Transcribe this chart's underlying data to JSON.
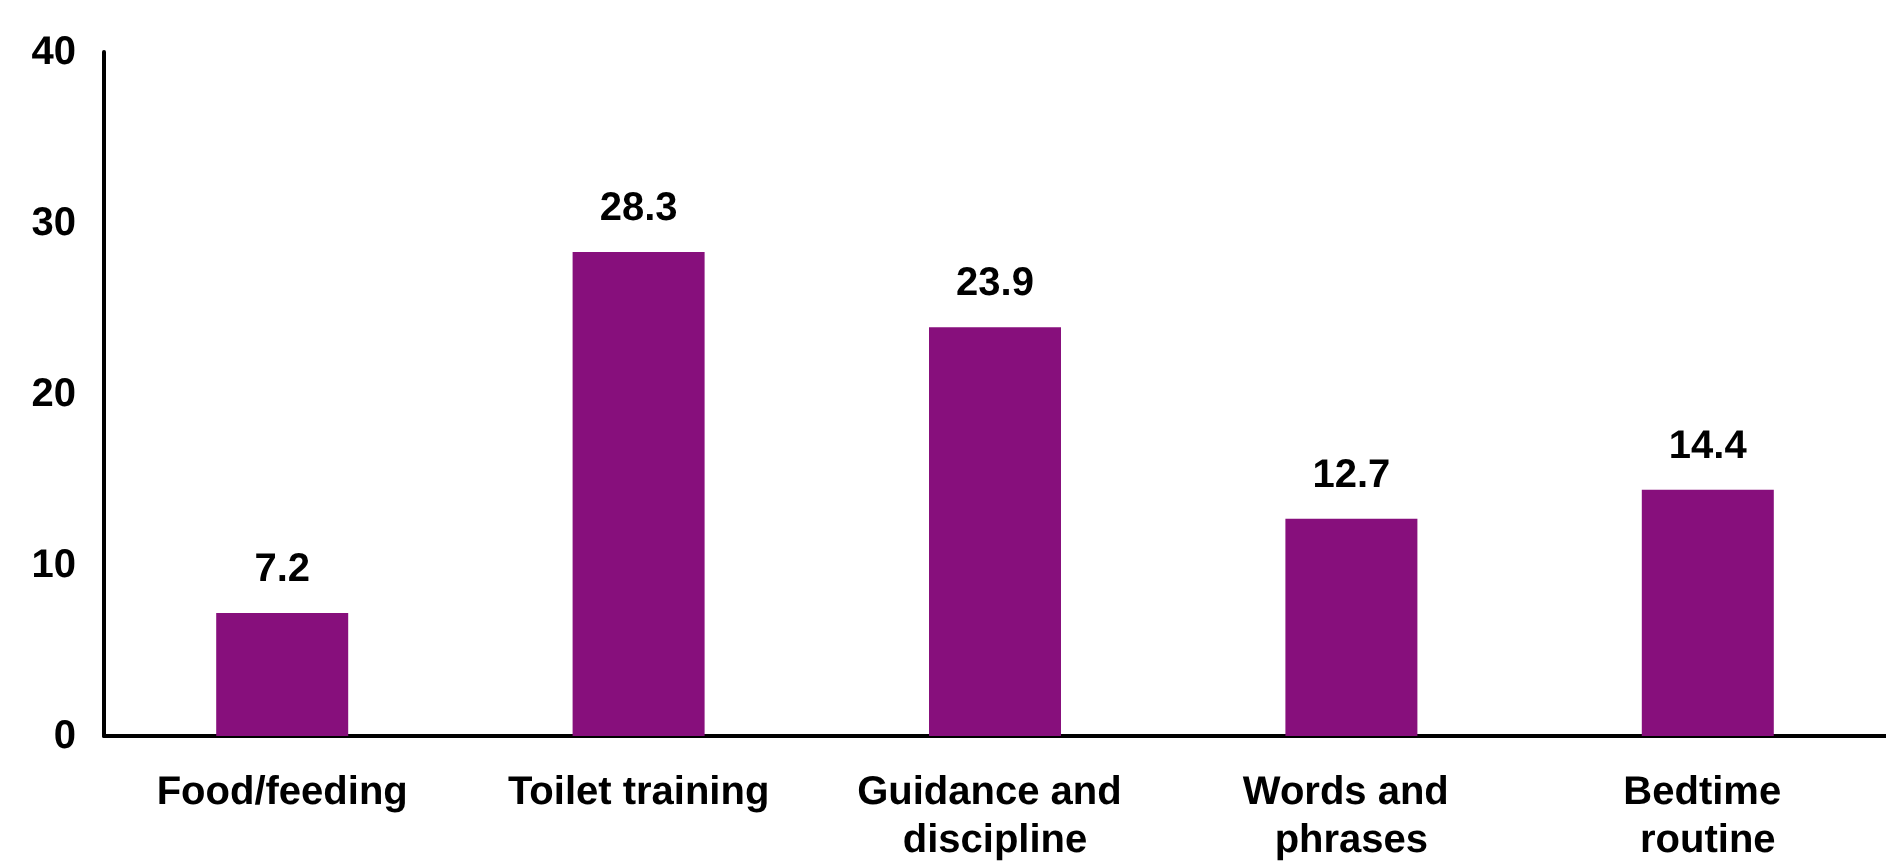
{
  "chart_data": {
    "type": "bar",
    "categories": [
      "Food/feeding",
      "Toilet training",
      "Guidance and discipline",
      "Words and phrases",
      "Bedtime routine"
    ],
    "values": [
      7.2,
      28.3,
      23.9,
      12.7,
      14.4
    ],
    "color": "#870f7c",
    "ylim": [
      0,
      40
    ],
    "yticks": [
      0,
      10,
      20,
      30,
      40
    ],
    "grid": false,
    "data_labels": true
  }
}
